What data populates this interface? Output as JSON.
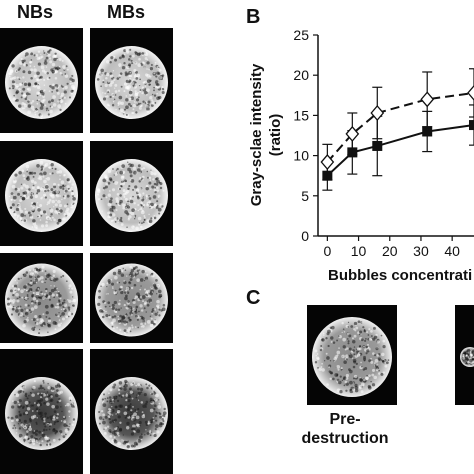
{
  "panel_a": {
    "col_labels": [
      "NBs",
      "MBs"
    ],
    "rows": 4
  },
  "panel_b": {
    "letter": "B"
  },
  "panel_c": {
    "letter": "C",
    "caption_line1": "Pre-",
    "caption_line2": "destruction"
  },
  "colors": {
    "background": "#ffffff",
    "ultrasound_bright": "#e8e8e8",
    "ultrasound_dark": "#050505"
  },
  "chart_data": {
    "type": "line",
    "xlabel": "Bubbles concentrati",
    "ylabel": "Gray-sclae intensity (ratio)",
    "ylabel_line1": "Gray-sclae intensity",
    "ylabel_line2": "(ratio)",
    "xlim": [
      -3,
      47
    ],
    "ylim": [
      0,
      25
    ],
    "xticks": [
      0,
      10,
      20,
      30,
      40
    ],
    "yticks": [
      0,
      5,
      10,
      15,
      20,
      25
    ],
    "grid": false,
    "series": [
      {
        "marker": "filled-square",
        "line": "solid",
        "x": [
          0,
          8,
          16,
          32,
          47
        ],
        "y": [
          7.5,
          10.4,
          11.2,
          13.0,
          13.8
        ],
        "err": [
          1.8,
          2.7,
          3.7,
          2.5,
          2.5
        ]
      },
      {
        "marker": "open-diamond",
        "line": "dashed",
        "x": [
          0,
          8,
          16,
          32,
          47
        ],
        "y": [
          9.2,
          12.7,
          15.3,
          17.0,
          17.8
        ],
        "err": [
          2.2,
          2.6,
          3.2,
          3.4,
          3.0
        ]
      }
    ]
  }
}
